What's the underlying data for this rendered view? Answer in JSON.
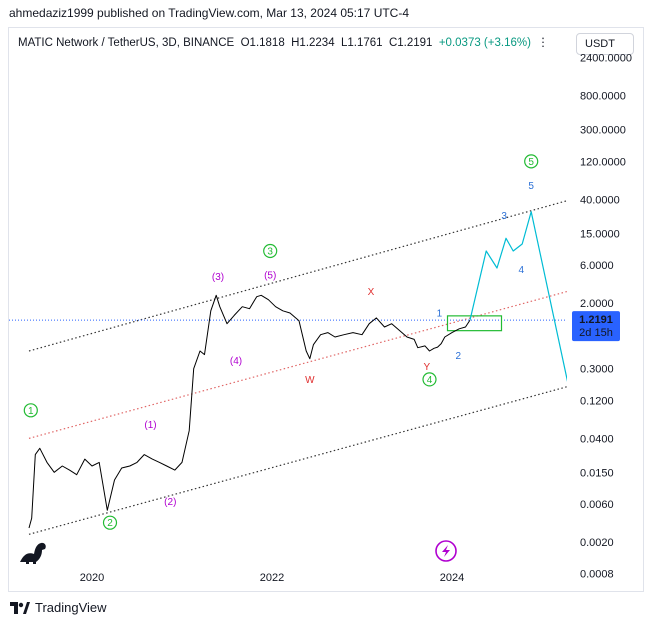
{
  "publisher_line": "ahmedaziz1999 published on TradingView.com, Mar 13, 2024 05:17 UTC-4",
  "legend": {
    "symbol": "MATIC Network / TetherUS, 3D, BINANCE",
    "open": "O1.1818",
    "high": "H1.2234",
    "low": "L1.1761",
    "close": "C1.2191",
    "change": "+0.0373 (+3.16%)",
    "more": "⋮"
  },
  "currency_button": "USDT",
  "last_price": {
    "value": "1.2191",
    "countdown": "2d 15h"
  },
  "footer_brand": "TradingView",
  "colors": {
    "price": "#000000",
    "projection": "#00bcd4",
    "channel": "#333333",
    "midline": "#e06666",
    "price_tag": "#2962ff",
    "wave_green": "#22bb33",
    "wave_purple": "#b000d0",
    "wave_red": "#e03030",
    "wave_blue": "#2a6fd6",
    "change_up": "#089981"
  },
  "icons": [
    "dino-logo-icon",
    "lightning-icon",
    "tradingview-logo-icon"
  ],
  "chart_data": {
    "type": "line",
    "scale": "log",
    "y_ticks": [
      "2400.0000",
      "800.0000",
      "300.0000",
      "120.0000",
      "40.0000",
      "15.0000",
      "6.0000",
      "2.0000",
      "0.3000",
      "0.1200",
      "0.0400",
      "0.0150",
      "0.0060",
      "0.0020",
      "0.0008"
    ],
    "y_tick_values": [
      2400,
      800,
      300,
      120,
      40,
      15,
      6,
      2,
      0.3,
      0.12,
      0.04,
      0.015,
      0.006,
      0.002,
      0.0008
    ],
    "x_ticks": [
      "2020",
      "2022",
      "2024"
    ],
    "x_tick_years": [
      2020,
      2022,
      2024
    ],
    "x_range": [
      2019.2,
      2026.2
    ],
    "y_range": [
      0.0005,
      3000
    ],
    "series": [
      {
        "role": "price",
        "x": [
          2019.3,
          2019.33,
          2019.37,
          2019.42,
          2019.5,
          2019.58,
          2019.67,
          2019.75,
          2019.83,
          2019.92,
          2020.0,
          2020.08,
          2020.17,
          2020.25,
          2020.33,
          2020.42,
          2020.5,
          2020.58,
          2020.67,
          2020.75,
          2020.83,
          2020.92,
          2021.0,
          2021.08,
          2021.13,
          2021.2,
          2021.25,
          2021.32,
          2021.38,
          2021.42,
          2021.5,
          2021.58,
          2021.67,
          2021.75,
          2021.83,
          2021.88,
          2021.96,
          2022.04,
          2022.12,
          2022.2,
          2022.3,
          2022.38,
          2022.42,
          2022.46,
          2022.54,
          2022.62,
          2022.7,
          2022.8,
          2022.9,
          2023.0,
          2023.08,
          2023.16,
          2023.25,
          2023.33,
          2023.42,
          2023.5,
          2023.58,
          2023.62,
          2023.7,
          2023.75,
          2023.8,
          2023.84,
          2023.88,
          2023.92,
          2024.0,
          2024.08,
          2024.15,
          2024.2
        ],
        "y": [
          0.003,
          0.004,
          0.025,
          0.03,
          0.02,
          0.015,
          0.018,
          0.016,
          0.014,
          0.022,
          0.018,
          0.02,
          0.005,
          0.012,
          0.017,
          0.018,
          0.02,
          0.025,
          0.022,
          0.02,
          0.018,
          0.016,
          0.02,
          0.05,
          0.3,
          0.5,
          0.45,
          1.6,
          2.5,
          1.8,
          1.1,
          1.4,
          1.8,
          1.7,
          2.4,
          2.5,
          2.2,
          1.8,
          1.6,
          1.5,
          1.2,
          0.5,
          0.4,
          0.6,
          0.8,
          0.85,
          0.75,
          0.8,
          0.85,
          0.8,
          1.1,
          1.3,
          1.0,
          1.1,
          0.9,
          0.75,
          0.7,
          0.55,
          0.58,
          0.5,
          0.54,
          0.56,
          0.62,
          0.75,
          0.85,
          0.95,
          1.0,
          1.22
        ]
      },
      {
        "role": "projection",
        "x": [
          2024.2,
          2024.38,
          2024.5,
          2024.6,
          2024.68,
          2024.78,
          2024.88,
          2025.3
        ],
        "y": [
          1.22,
          9.0,
          5.5,
          13.0,
          9.0,
          11.0,
          28.0,
          0.17
        ]
      }
    ],
    "channel_lines": [
      {
        "role": "upper",
        "x": [
          2019.3,
          2026.1
        ],
        "y": [
          0.5,
          70
        ]
      },
      {
        "role": "middle",
        "x": [
          2019.3,
          2026.1
        ],
        "y": [
          0.04,
          5.0
        ]
      },
      {
        "role": "lower",
        "x": [
          2019.3,
          2026.1
        ],
        "y": [
          0.0025,
          0.32
        ]
      }
    ],
    "price_line": 1.2191,
    "rectangle": {
      "x": [
        2023.95,
        2024.55
      ],
      "y": [
        0.9,
        1.38
      ]
    },
    "annotations": [
      {
        "text": "1",
        "style": "circle",
        "color": "green",
        "x": 2019.32,
        "y": 0.09
      },
      {
        "text": "2",
        "style": "circle",
        "color": "green",
        "x": 2020.2,
        "y": 0.0035
      },
      {
        "text": "3",
        "style": "circle",
        "color": "green",
        "x": 2021.98,
        "y": 9.0
      },
      {
        "text": "4",
        "style": "circle",
        "color": "green",
        "x": 2023.75,
        "y": 0.22
      },
      {
        "text": "5",
        "style": "circle",
        "color": "green",
        "x": 2024.88,
        "y": 120
      },
      {
        "text": "(1)",
        "style": "plain",
        "color": "purple",
        "x": 2020.65,
        "y": 0.06
      },
      {
        "text": "(2)",
        "style": "plain",
        "color": "purple",
        "x": 2020.87,
        "y": 0.0065
      },
      {
        "text": "(3)",
        "style": "plain",
        "color": "purple",
        "x": 2021.4,
        "y": 4.3
      },
      {
        "text": "(4)",
        "style": "plain",
        "color": "purple",
        "x": 2021.6,
        "y": 0.38
      },
      {
        "text": "(5)",
        "style": "plain",
        "color": "purple",
        "x": 2021.98,
        "y": 4.5
      },
      {
        "text": "X",
        "style": "plain",
        "color": "red",
        "x": 2023.1,
        "y": 2.8
      },
      {
        "text": "W",
        "style": "plain",
        "color": "red",
        "x": 2022.42,
        "y": 0.22
      },
      {
        "text": "Y",
        "style": "plain",
        "color": "red",
        "x": 2023.72,
        "y": 0.32
      },
      {
        "text": "1",
        "style": "plain",
        "color": "blue",
        "x": 2023.86,
        "y": 1.5
      },
      {
        "text": "2",
        "style": "plain",
        "color": "blue",
        "x": 2024.07,
        "y": 0.44
      },
      {
        "text": "3",
        "style": "plain",
        "color": "blue",
        "x": 2024.58,
        "y": 25
      },
      {
        "text": "4",
        "style": "plain",
        "color": "blue",
        "x": 2024.77,
        "y": 5.3
      },
      {
        "text": "5",
        "style": "plain",
        "color": "blue",
        "x": 2024.88,
        "y": 60
      }
    ]
  }
}
